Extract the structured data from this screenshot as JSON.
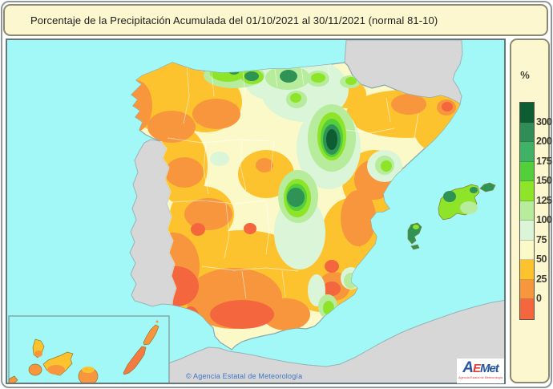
{
  "header": {
    "title": "Porcentaje de la Precipitación Acumulada del 01/10/2021 al 30/11/2021 (normal 81-10)"
  },
  "legend": {
    "unit_label": "%",
    "ticks": [
      "300",
      "200",
      "175",
      "150",
      "125",
      "100",
      "75",
      "50",
      "25",
      "0"
    ],
    "band_colors_top_to_bottom": [
      "#0e5c31",
      "#318d58",
      "#3fb266",
      "#52cf3b",
      "#8de428",
      "#b6ec9c",
      "#dbf5d8",
      "#fcf9c8",
      "#fdc32f",
      "#f8963d",
      "#f4663d"
    ]
  },
  "map": {
    "sea_color": "#a1f8f6",
    "neighbor_land_color": "#d7d7d7",
    "spain_base_color": "#fcf9c8",
    "copyright": "© Agencia Estatal de Meteorología"
  },
  "logo": {
    "a": "A",
    "e": "E",
    "met": "Met",
    "subtext": "Agencia Estatal de Meteorología",
    "blue": "#27559f",
    "red": "#e03c31"
  }
}
